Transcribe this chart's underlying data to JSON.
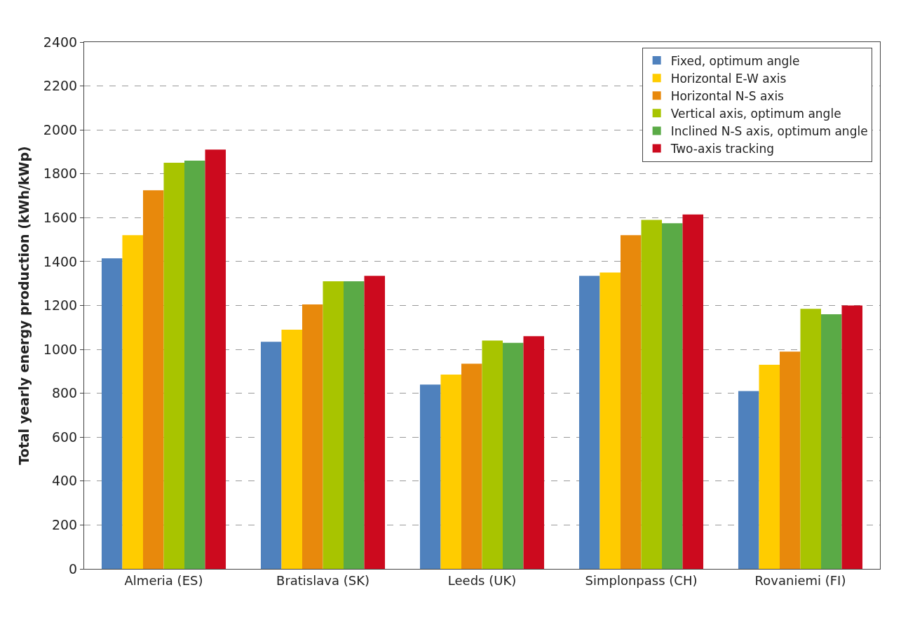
{
  "chart_data": {
    "type": "bar",
    "ylabel": "Total yearly energy production (kWh/kWp)",
    "categories": [
      "Almeria (ES)",
      "Bratislava (SK)",
      "Leeds (UK)",
      "Simplonpass (CH)",
      "Rovaniemi (FI)"
    ],
    "series": [
      {
        "name": "Fixed, optimum angle",
        "color": "#4f81bd",
        "values": [
          1415,
          1035,
          840,
          1335,
          810
        ]
      },
      {
        "name": "Horizontal E-W axis",
        "color": "#ffcc00",
        "values": [
          1520,
          1090,
          885,
          1350,
          930
        ]
      },
      {
        "name": "Horizontal N-S axis",
        "color": "#e8890c",
        "values": [
          1725,
          1205,
          935,
          1520,
          990
        ]
      },
      {
        "name": "Vertical axis, optimum angle",
        "color": "#a8c400",
        "values": [
          1850,
          1310,
          1040,
          1590,
          1185
        ]
      },
      {
        "name": "Inclined N-S axis, optimum angle",
        "color": "#5aaa46",
        "values": [
          1860,
          1310,
          1030,
          1575,
          1160
        ]
      },
      {
        "name": "Two-axis tracking",
        "color": "#cc0a1e",
        "values": [
          1910,
          1335,
          1060,
          1615,
          1200
        ]
      }
    ],
    "ylim": [
      0,
      2400
    ],
    "yticks": [
      0,
      200,
      400,
      600,
      800,
      1000,
      1200,
      1400,
      1600,
      1800,
      2000,
      2200,
      2400
    ],
    "grid": "y",
    "legend": "top right"
  }
}
